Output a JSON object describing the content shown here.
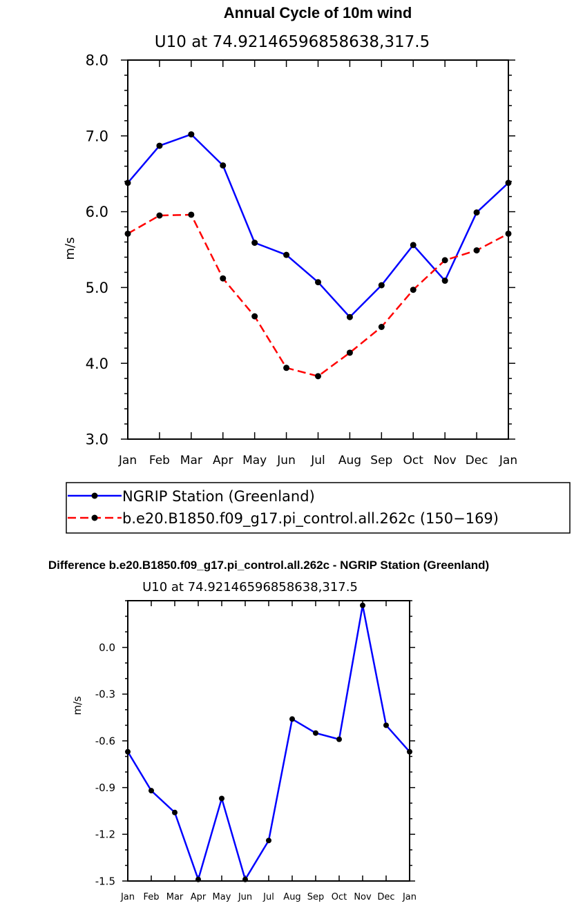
{
  "chart_data": [
    {
      "type": "line",
      "title": "Annual Cycle of 10m wind",
      "subtitle": "U10 at 74.92146596858638,317.5",
      "ylabel": "m/s",
      "xlabel": "",
      "ylim": [
        3.0,
        8.0
      ],
      "yticks": [
        "3.0",
        "4.0",
        "5.0",
        "6.0",
        "7.0",
        "8.0"
      ],
      "categories": [
        "Jan",
        "Feb",
        "Mar",
        "Apr",
        "May",
        "Jun",
        "Jul",
        "Aug",
        "Sep",
        "Oct",
        "Nov",
        "Dec",
        "Jan"
      ],
      "grid": false,
      "legend_position": "bottom",
      "series": [
        {
          "name": "NGRIP Station (Greenland)",
          "color": "#0000ff",
          "dash": "solid",
          "values": [
            6.38,
            6.87,
            7.02,
            6.61,
            5.59,
            5.43,
            5.07,
            4.61,
            5.03,
            5.56,
            5.09,
            5.99,
            6.38
          ]
        },
        {
          "name": "b.e20.B1850.f09_g17.pi_control.all.262c (150−169)",
          "color": "#ff0000",
          "dash": "dashed",
          "values": [
            5.71,
            5.95,
            5.96,
            5.12,
            4.62,
            3.94,
            3.83,
            4.14,
            4.48,
            4.97,
            5.36,
            5.49,
            5.71
          ]
        }
      ]
    },
    {
      "type": "line",
      "title": "Difference b.e20.B1850.f09_g17.pi_control.all.262c - NGRIP Station (Greenland)",
      "subtitle": "U10 at 74.92146596858638,317.5",
      "ylabel": "m/s",
      "xlabel": "",
      "ylim": [
        -1.5,
        0.3
      ],
      "yticks": [
        "-1.5",
        "-1.2",
        "-0.9",
        "-0.6",
        "-0.3",
        "0.0"
      ],
      "categories": [
        "Jan",
        "Feb",
        "Mar",
        "Apr",
        "May",
        "Jun",
        "Jul",
        "Aug",
        "Sep",
        "Oct",
        "Nov",
        "Dec",
        "Jan"
      ],
      "grid": false,
      "series": [
        {
          "color": "#0000ff",
          "dash": "solid",
          "values": [
            -0.67,
            -0.92,
            -1.06,
            -1.49,
            -0.97,
            -1.49,
            -1.24,
            -0.46,
            -0.55,
            -0.59,
            0.27,
            -0.5,
            -0.67
          ]
        }
      ]
    }
  ]
}
